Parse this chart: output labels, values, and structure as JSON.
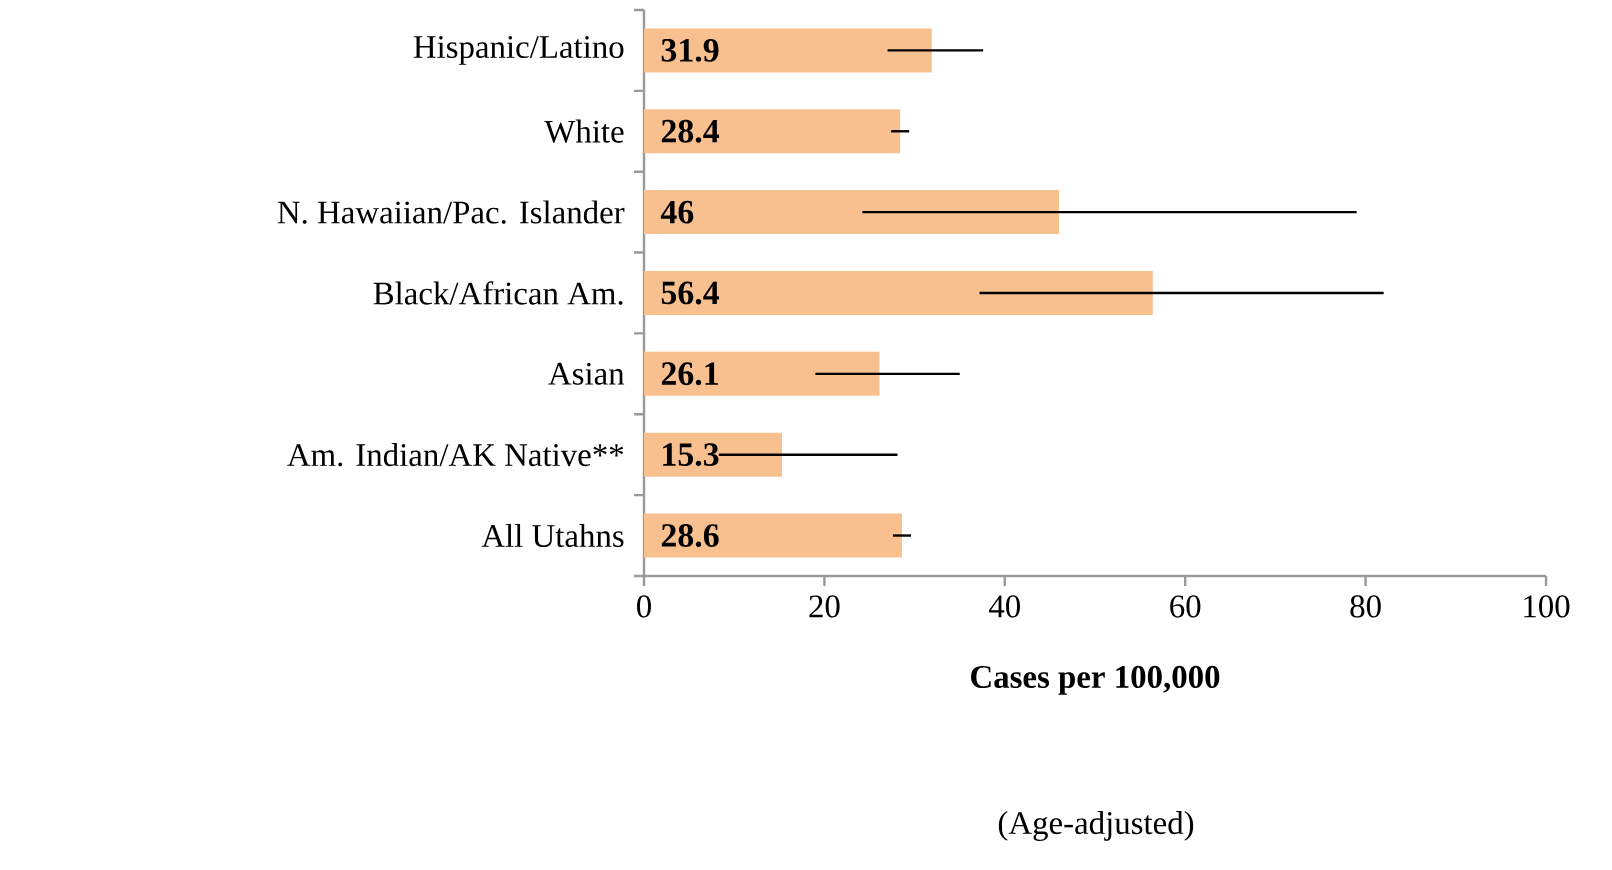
{
  "chart_data": {
    "type": "bar",
    "orientation": "horizontal",
    "xlabel": "Cases per 100,000",
    "annotations": [
      "(Age-adjusted)"
    ],
    "categories": [
      "Hispanic/Latino",
      "White",
      "N. Hawaiian/Pac. Islander",
      "Black/African Am.",
      "Asian",
      "Am. Indian/AK Native**",
      "All Utahns"
    ],
    "values": [
      31.9,
      28.4,
      46,
      56.4,
      26.1,
      15.3,
      28.6
    ],
    "value_labels": [
      "31.9",
      "28.4",
      "46",
      "56.4",
      "26.1",
      "15.3",
      "28.6"
    ],
    "errors": [
      [
        27.0,
        37.6
      ],
      [
        27.4,
        29.4
      ],
      [
        24.2,
        79.0
      ],
      [
        37.2,
        82.0
      ],
      [
        19.0,
        35.0
      ],
      [
        8.3,
        28.1
      ],
      [
        27.6,
        29.6
      ]
    ],
    "color": "#f9c08f",
    "xlim": [
      0,
      100
    ],
    "xticks": [
      0,
      20,
      40,
      60,
      80,
      100
    ],
    "grid": false
  }
}
